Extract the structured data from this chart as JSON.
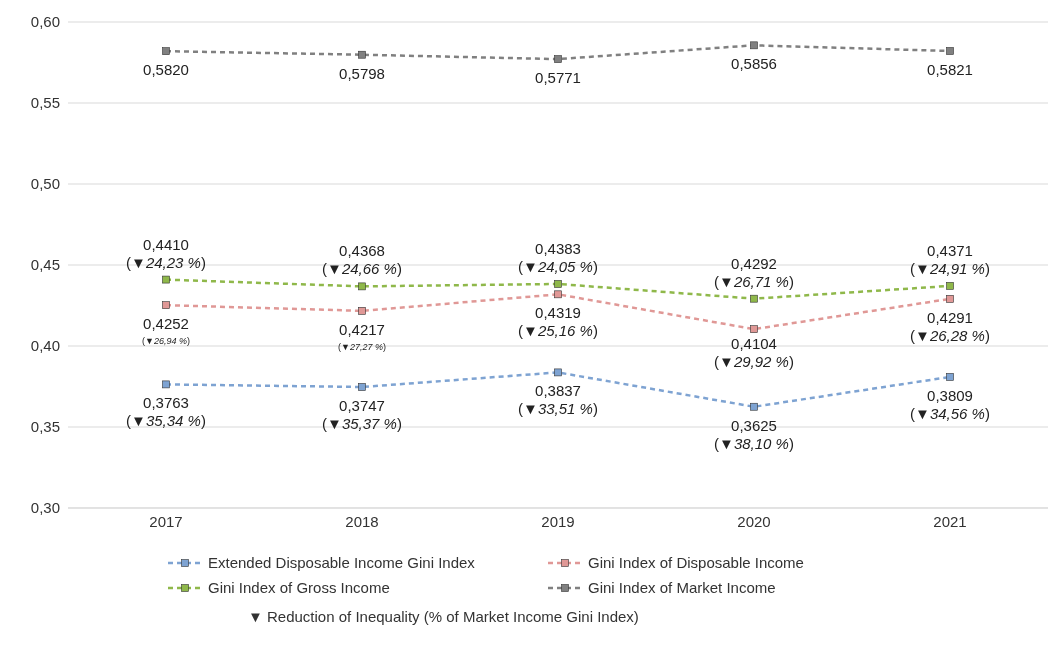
{
  "chart_data": {
    "type": "line",
    "categories": [
      "2017",
      "2018",
      "2019",
      "2020",
      "2021"
    ],
    "series": [
      {
        "name": "Extended Disposable Income Gini Index",
        "color": "#7ea3d2",
        "values": [
          0.3763,
          0.3747,
          0.3837,
          0.3625,
          0.3809
        ],
        "value_labels": [
          "0,3763\n(▼35,34 %)",
          "0,3747\n(▼35,37 %)",
          "0,3837\n(▼33,51 %)",
          "0,3625\n(▼38,10 %)",
          "0,3809\n(▼34,56 %)"
        ]
      },
      {
        "name": "Gini Index of Disposable Income",
        "color": "#e09896",
        "values": [
          0.4252,
          0.4217,
          0.4319,
          0.4104,
          0.4291
        ],
        "value_labels": [
          "0,4252\n(▼26,94 %)",
          "0,4217\n(▼27,27 %)",
          "0,4319\n(▼25,16 %)",
          "0,4104\n(▼29,92 %)",
          "0,4291\n(▼26,28 %)"
        ]
      },
      {
        "name": "Gini Index of Gross Income",
        "color": "#8fb84a",
        "values": [
          0.441,
          0.4368,
          0.4383,
          0.4292,
          0.4371
        ],
        "value_labels": [
          "0,4410\n(▼24,23 %)",
          "0,4368\n(▼24,66 %)",
          "0,4383\n(▼24,05 %)",
          "0,4292\n(▼26,71 %)",
          "0,4371\n(▼24,91 %)"
        ]
      },
      {
        "name": "Gini Index of Market Income",
        "color": "#808080",
        "values": [
          0.582,
          0.5798,
          0.5771,
          0.5856,
          0.5821
        ],
        "value_labels": [
          "0,5820",
          "0,5798",
          "0,5771",
          "0,5856",
          "0,5821"
        ]
      }
    ],
    "ylim": [
      0.3,
      0.6
    ],
    "yticks": [
      {
        "value": 0.3,
        "label": "0,30"
      },
      {
        "value": 0.35,
        "label": "0,35"
      },
      {
        "value": 0.4,
        "label": "0,40"
      },
      {
        "value": 0.45,
        "label": "0,45"
      },
      {
        "value": 0.5,
        "label": "0,50"
      },
      {
        "value": 0.55,
        "label": "0,55"
      },
      {
        "value": 0.6,
        "label": "0,60"
      }
    ],
    "grid": "y",
    "legend": "bottom",
    "marker": "square",
    "line_style": "dashed",
    "annotations": [
      "▼ Reduction of Inequality (% of Market Income Gini Index)"
    ]
  }
}
